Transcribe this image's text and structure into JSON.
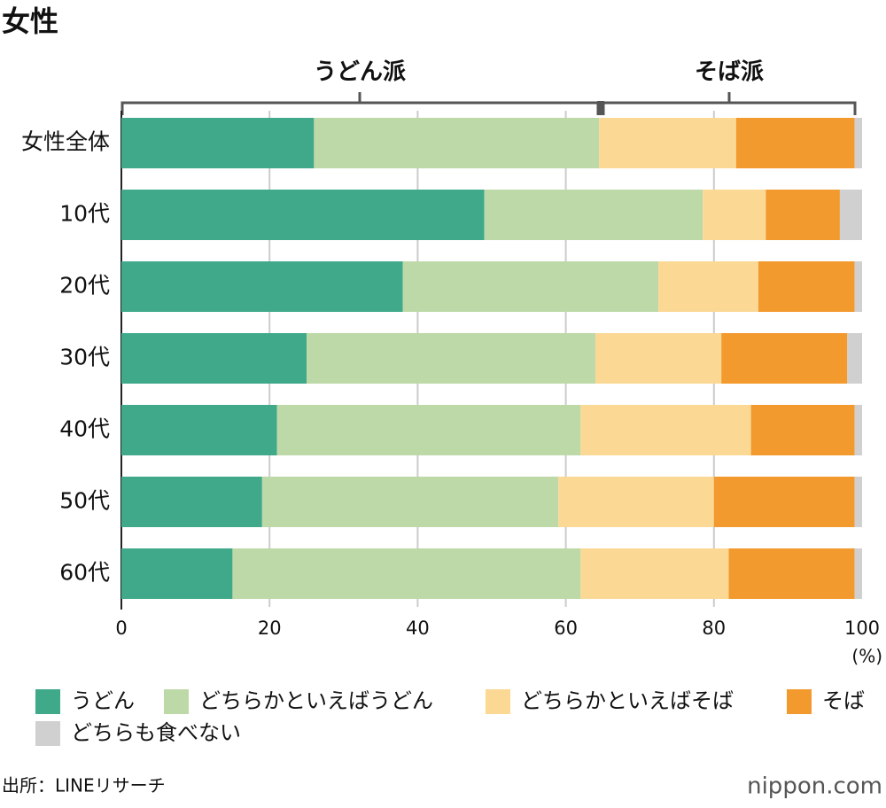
{
  "chart_data": {
    "type": "stacked-barh",
    "title": "女性",
    "annotations": [
      "うどん派",
      "そば派"
    ],
    "categories": [
      "女性全体",
      "10代",
      "20代",
      "30代",
      "40代",
      "50代",
      "60代"
    ],
    "series": [
      {
        "name": "うどん",
        "color": "#3fa98a",
        "values": [
          26,
          49,
          38,
          25,
          21,
          19,
          15
        ]
      },
      {
        "name": "どちらかといえばうどん",
        "color": "#bdd9a8",
        "values": [
          38.5,
          29.5,
          34.5,
          39,
          41,
          40,
          47
        ]
      },
      {
        "name": "どちらかといえばそば",
        "color": "#fbd894",
        "values": [
          18.5,
          8.5,
          13.5,
          17,
          23,
          21,
          20
        ]
      },
      {
        "name": "そば",
        "color": "#f29a2e",
        "values": [
          16,
          10,
          13,
          17,
          14,
          19,
          17
        ]
      },
      {
        "name": "どちらも食べない",
        "color": "#d0d0d0",
        "values": [
          1,
          3,
          1,
          2,
          1,
          1,
          1
        ]
      }
    ],
    "xlim": [
      0,
      100
    ],
    "xticks": [
      0,
      20,
      40,
      60,
      80,
      100
    ],
    "x_unit": "(%)",
    "grid": true,
    "source": "出所：LINEリサーチ",
    "logo": "nippon.com"
  }
}
